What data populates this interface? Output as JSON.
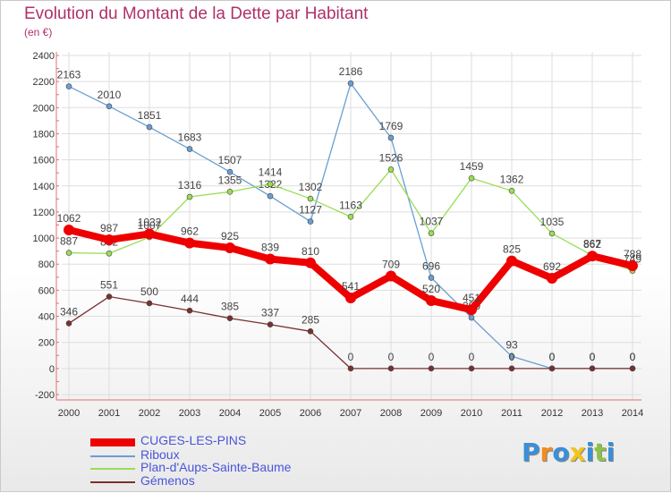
{
  "title": "Evolution du Montant de la Dette par Habitant",
  "subtitle": "(en €)",
  "logo": "Proxiti",
  "chart_data": {
    "type": "line",
    "title": "Evolution du Montant de la Dette par Habitant",
    "subtitle": "(en €)",
    "xlabel": "",
    "ylabel": "",
    "x": [
      "2000",
      "2001",
      "2002",
      "2003",
      "2004",
      "2005",
      "2006",
      "2007",
      "2008",
      "2009",
      "2010",
      "2011",
      "2012",
      "2013",
      "2014"
    ],
    "ylim": [
      -200,
      2400
    ],
    "yticks": [
      -200,
      0,
      200,
      400,
      600,
      800,
      1000,
      1200,
      1400,
      1600,
      1800,
      2000,
      2200,
      2400
    ],
    "grid": true,
    "legend_position": "bottom-left",
    "series": [
      {
        "name": "CUGES-LES-PINS",
        "color": "#ee0000",
        "emphasis": true,
        "values": [
          1062,
          987,
          1032,
          962,
          925,
          839,
          810,
          541,
          709,
          520,
          451,
          825,
          692,
          862,
          788
        ]
      },
      {
        "name": "Riboux",
        "color": "#6a9fd4",
        "values": [
          2163,
          2010,
          1851,
          1683,
          1507,
          1322,
          1127,
          2186,
          1769,
          696,
          390,
          93,
          0,
          0,
          0
        ]
      },
      {
        "name": "Plan-d'Aups-Sainte-Baume",
        "color": "#99dd55",
        "values": [
          887,
          882,
          1007,
          1316,
          1355,
          1414,
          1302,
          1163,
          1526,
          1037,
          1459,
          1362,
          1035,
          867,
          749
        ]
      },
      {
        "name": "Gémenos",
        "color": "#7a3030",
        "values": [
          346,
          551,
          500,
          444,
          385,
          337,
          285,
          0,
          0,
          0,
          0,
          0,
          0,
          0,
          0
        ]
      }
    ]
  }
}
